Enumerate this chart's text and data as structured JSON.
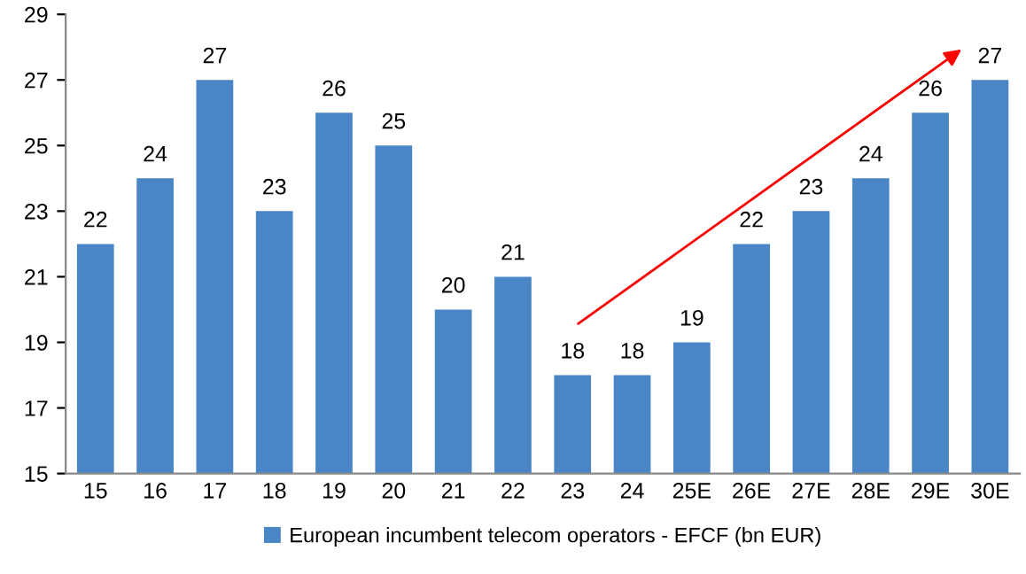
{
  "chart_data": {
    "type": "bar",
    "categories": [
      "15",
      "16",
      "17",
      "18",
      "19",
      "20",
      "21",
      "22",
      "23",
      "24",
      "25E",
      "26E",
      "27E",
      "28E",
      "29E",
      "30E"
    ],
    "series": [
      {
        "name": "European incumbent telecom operators - EFCF (bn EUR)",
        "color": "#4a86c5",
        "values": [
          22,
          24,
          27,
          23,
          26,
          25,
          20,
          21,
          18,
          18,
          19,
          22,
          23,
          24,
          26,
          27
        ]
      }
    ],
    "ylim": [
      15,
      29
    ],
    "yticks": [
      15,
      17,
      19,
      21,
      23,
      25,
      27,
      29
    ],
    "grid": false,
    "legend": "bottom",
    "data_labels": true
  }
}
